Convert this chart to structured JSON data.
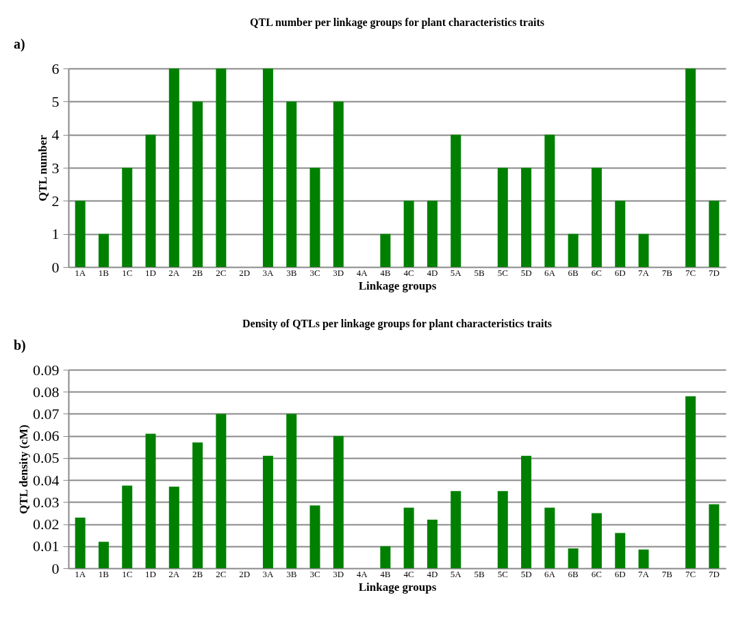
{
  "chart_data": [
    {
      "type": "bar",
      "title": "QTL number  per linkage groups  for plant  characteristics traits",
      "xlabel": "Linkage groups",
      "ylabel": "QTL  number",
      "annotations": [
        "a)"
      ],
      "categories": [
        "1A",
        "1B",
        "1C",
        "1D",
        "2A",
        "2B",
        "2C",
        "2D",
        "3A",
        "3B",
        "3C",
        "3D",
        "4A",
        "4B",
        "4C",
        "4D",
        "5A",
        "5B",
        "5C",
        "5D",
        "6A",
        "6B",
        "6C",
        "6D",
        "7A",
        "7B",
        "7C",
        "7D"
      ],
      "series": [
        {
          "color": "#008000",
          "values": [
            2,
            1,
            3,
            4,
            6,
            5,
            6,
            0,
            6,
            5,
            3,
            5,
            0,
            1,
            2,
            2,
            4,
            0,
            3,
            3,
            4,
            1,
            3,
            2,
            1,
            0,
            6,
            2
          ]
        }
      ],
      "ylim": [
        0,
        6
      ],
      "yticks": [
        0,
        1,
        2,
        3,
        4,
        5,
        6
      ],
      "grid": "y"
    },
    {
      "type": "bar",
      "title": "Density of QTLs per linkage groups  for plant  characteristics traits",
      "xlabel": "Linkage groups",
      "ylabel": "QTL  density (cM)",
      "annotations": [
        "b)"
      ],
      "categories": [
        "1A",
        "1B",
        "1C",
        "1D",
        "2A",
        "2B",
        "2C",
        "2D",
        "3A",
        "3B",
        "3C",
        "3D",
        "4A",
        "4B",
        "4C",
        "4D",
        "5A",
        "5B",
        "5C",
        "5D",
        "6A",
        "6B",
        "6C",
        "6D",
        "7A",
        "7B",
        "7C",
        "7D"
      ],
      "series": [
        {
          "color": "#008000",
          "values": [
            0.023,
            0.012,
            0.0375,
            0.061,
            0.037,
            0.057,
            0.07,
            0,
            0.051,
            0.07,
            0.0285,
            0.06,
            0,
            0.01,
            0.0275,
            0.022,
            0.035,
            0,
            0.035,
            0.051,
            0.0275,
            0.009,
            0.025,
            0.016,
            0.0085,
            0,
            0.078,
            0.029
          ]
        }
      ],
      "ylim": [
        0,
        0.09
      ],
      "yticks": [
        0,
        0.01,
        0.02,
        0.03,
        0.04,
        0.05,
        0.06,
        0.07,
        0.08,
        0.09
      ],
      "grid": "y"
    }
  ]
}
